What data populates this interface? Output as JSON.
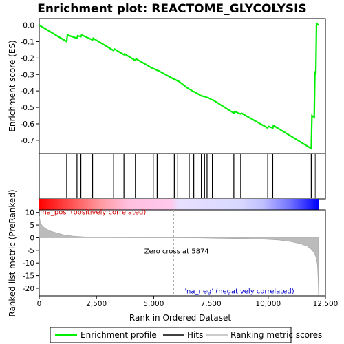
{
  "chart_data": {
    "type": "line",
    "title": "Enrichment plot: REACTOME_GLYCOLYSIS",
    "es_panel": {
      "ylabel": "Enrichment score (ES)",
      "ylim": [
        -0.78,
        0.04
      ],
      "yticks": [
        0.0,
        -0.1,
        -0.2,
        -0.3,
        -0.4,
        -0.5,
        -0.6,
        -0.7
      ],
      "ytick_labels": [
        "0.0",
        "-0.1",
        "-0.2",
        "-0.3",
        "-0.4",
        "-0.5",
        "-0.6",
        "-0.7"
      ],
      "series": [
        {
          "name": "Enrichment profile",
          "color": "#00ee00",
          "x": [
            0,
            1200,
            1230,
            1650,
            1680,
            1820,
            1850,
            2330,
            2360,
            3250,
            3280,
            3700,
            3730,
            4200,
            4230,
            4980,
            5010,
            5150,
            5180,
            5900,
            5930,
            6050,
            6080,
            6550,
            6580,
            6750,
            6780,
            7080,
            7110,
            7220,
            7250,
            7330,
            7360,
            7560,
            7590,
            8500,
            8530,
            8800,
            8830,
            9980,
            10010,
            10200,
            10230,
            11880,
            11910,
            12010,
            12040,
            12080,
            12110,
            12200
          ],
          "y": [
            0.0,
            -0.1,
            -0.06,
            -0.08,
            -0.065,
            -0.07,
            -0.06,
            -0.09,
            -0.08,
            -0.155,
            -0.145,
            -0.18,
            -0.175,
            -0.215,
            -0.205,
            -0.265,
            -0.265,
            -0.275,
            -0.275,
            -0.33,
            -0.33,
            -0.34,
            -0.34,
            -0.39,
            -0.39,
            -0.405,
            -0.405,
            -0.43,
            -0.43,
            -0.435,
            -0.435,
            -0.44,
            -0.44,
            -0.455,
            -0.455,
            -0.535,
            -0.525,
            -0.54,
            -0.535,
            -0.625,
            -0.615,
            -0.625,
            -0.61,
            -0.75,
            -0.55,
            -0.56,
            -0.28,
            -0.3,
            0.01,
            0.0
          ]
        }
      ]
    },
    "hits": [
      1200,
      1650,
      1820,
      2330,
      3250,
      3700,
      4200,
      4980,
      5150,
      5900,
      6050,
      6550,
      6750,
      7080,
      7220,
      7330,
      7560,
      8500,
      8800,
      9980,
      10200,
      11880,
      12010,
      12080
    ],
    "rank_panel": {
      "ylabel": "Ranked list metric (PreRanked)",
      "ylim": [
        -23,
        11
      ],
      "yticks": [
        10,
        5,
        0,
        -5,
        -10,
        -15,
        -20
      ],
      "ytick_labels": [
        "10",
        "5",
        "0",
        "-5",
        "-10",
        "-15",
        "-20"
      ],
      "series": [
        {
          "name": "Ranking metric scores",
          "color": "#bbbbbb",
          "x": [
            0,
            50,
            150,
            300,
            500,
            800,
            1100,
            1500,
            2000,
            3000,
            4000,
            5000,
            5874,
            7000,
            8000,
            9000,
            10000,
            10500,
            11000,
            11400,
            11700,
            11900,
            12000,
            12100,
            12150,
            12180,
            12200
          ],
          "y": [
            8.5,
            6.0,
            4.5,
            3.5,
            2.6,
            1.8,
            1.1,
            0.6,
            0.35,
            0.15,
            0.05,
            0.02,
            0.0,
            -0.1,
            -0.25,
            -0.4,
            -0.7,
            -1.0,
            -1.6,
            -2.4,
            -3.4,
            -4.8,
            -6.0,
            -8.0,
            -11.0,
            -17.0,
            -23.0
          ]
        }
      ],
      "zero_cross": 5874,
      "zero_cross_label": "Zero cross at 5874",
      "pos_label": "'na_pos' (positively correlated)",
      "neg_label": "'na_neg' (negatively correlated)"
    },
    "x_axis": {
      "label": "Rank in Ordered Dataset",
      "xlim": [
        0,
        12500
      ],
      "ticks": [
        0,
        2500,
        5000,
        7500,
        10000,
        12500
      ],
      "tick_labels": [
        "0",
        "2,500",
        "5,000",
        "7,500",
        "10,000",
        "12,500"
      ],
      "n_genes": 12200
    },
    "legend": {
      "placement": "bottom",
      "entries": [
        {
          "label": "Enrichment profile",
          "color": "#00ee00"
        },
        {
          "label": "Hits",
          "color": "#000000"
        },
        {
          "label": "Ranking metric scores",
          "color": "#bbbbbb"
        }
      ]
    },
    "colors": {
      "pos_text": "#cc0000",
      "neg_text": "#0000cc",
      "heat_red": "#ff0000",
      "heat_pink": "#ffc0e0",
      "heat_lav": "#d8d8ff",
      "heat_blue": "#0000ff"
    }
  }
}
